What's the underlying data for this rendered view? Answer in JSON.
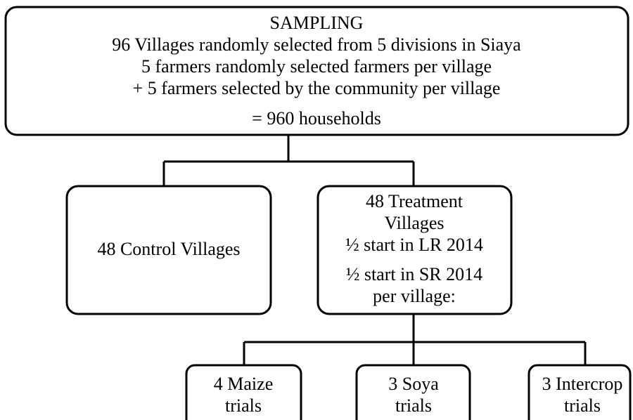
{
  "nodes": [
    {
      "lines": [
        "SAMPLING",
        "96 Villages randomly selected from 5 divisions in Siaya",
        "5 farmers randomly selected farmers per village",
        "+ 5 farmers selected by the community per village",
        "= 960 households"
      ]
    },
    {
      "lines": [
        "48 Control Villages"
      ]
    },
    {
      "lines": [
        "48 Treatment",
        "Villages",
        "½ start in LR 2014",
        "½ start in SR 2014",
        "per village:"
      ]
    },
    {
      "lines": [
        "4 Maize",
        "trials"
      ]
    },
    {
      "lines": [
        "3 Soya",
        "trials"
      ]
    },
    {
      "lines": [
        "3 Intercrop",
        "trials"
      ]
    }
  ]
}
